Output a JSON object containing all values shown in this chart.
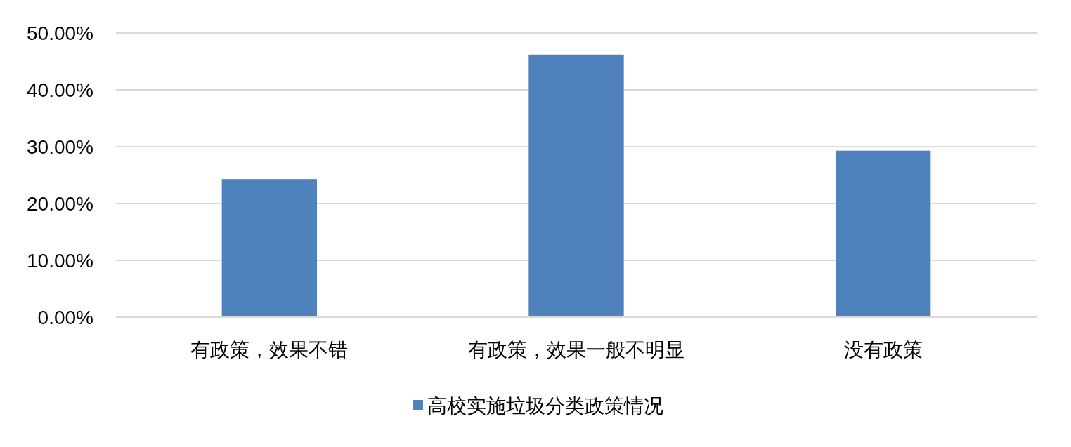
{
  "chart_data": {
    "type": "bar",
    "categories": [
      "有政策，效果不错",
      "有政策，效果一般不明显",
      "没有政策"
    ],
    "series": [
      {
        "name": "高校实施垃圾分类政策情况",
        "color": "#4f81bd",
        "values": [
          24.3,
          46.2,
          29.3
        ]
      }
    ],
    "ylim": [
      0,
      50
    ],
    "yticks": [
      {
        "value": 0,
        "label": "0.00%"
      },
      {
        "value": 10,
        "label": "10.00%"
      },
      {
        "value": 20,
        "label": "20.00%"
      },
      {
        "value": 30,
        "label": "30.00%"
      },
      {
        "value": 40,
        "label": "40.00%"
      },
      {
        "value": 50,
        "label": "50.00%"
      }
    ],
    "grid": "y",
    "legend": "bottom"
  }
}
